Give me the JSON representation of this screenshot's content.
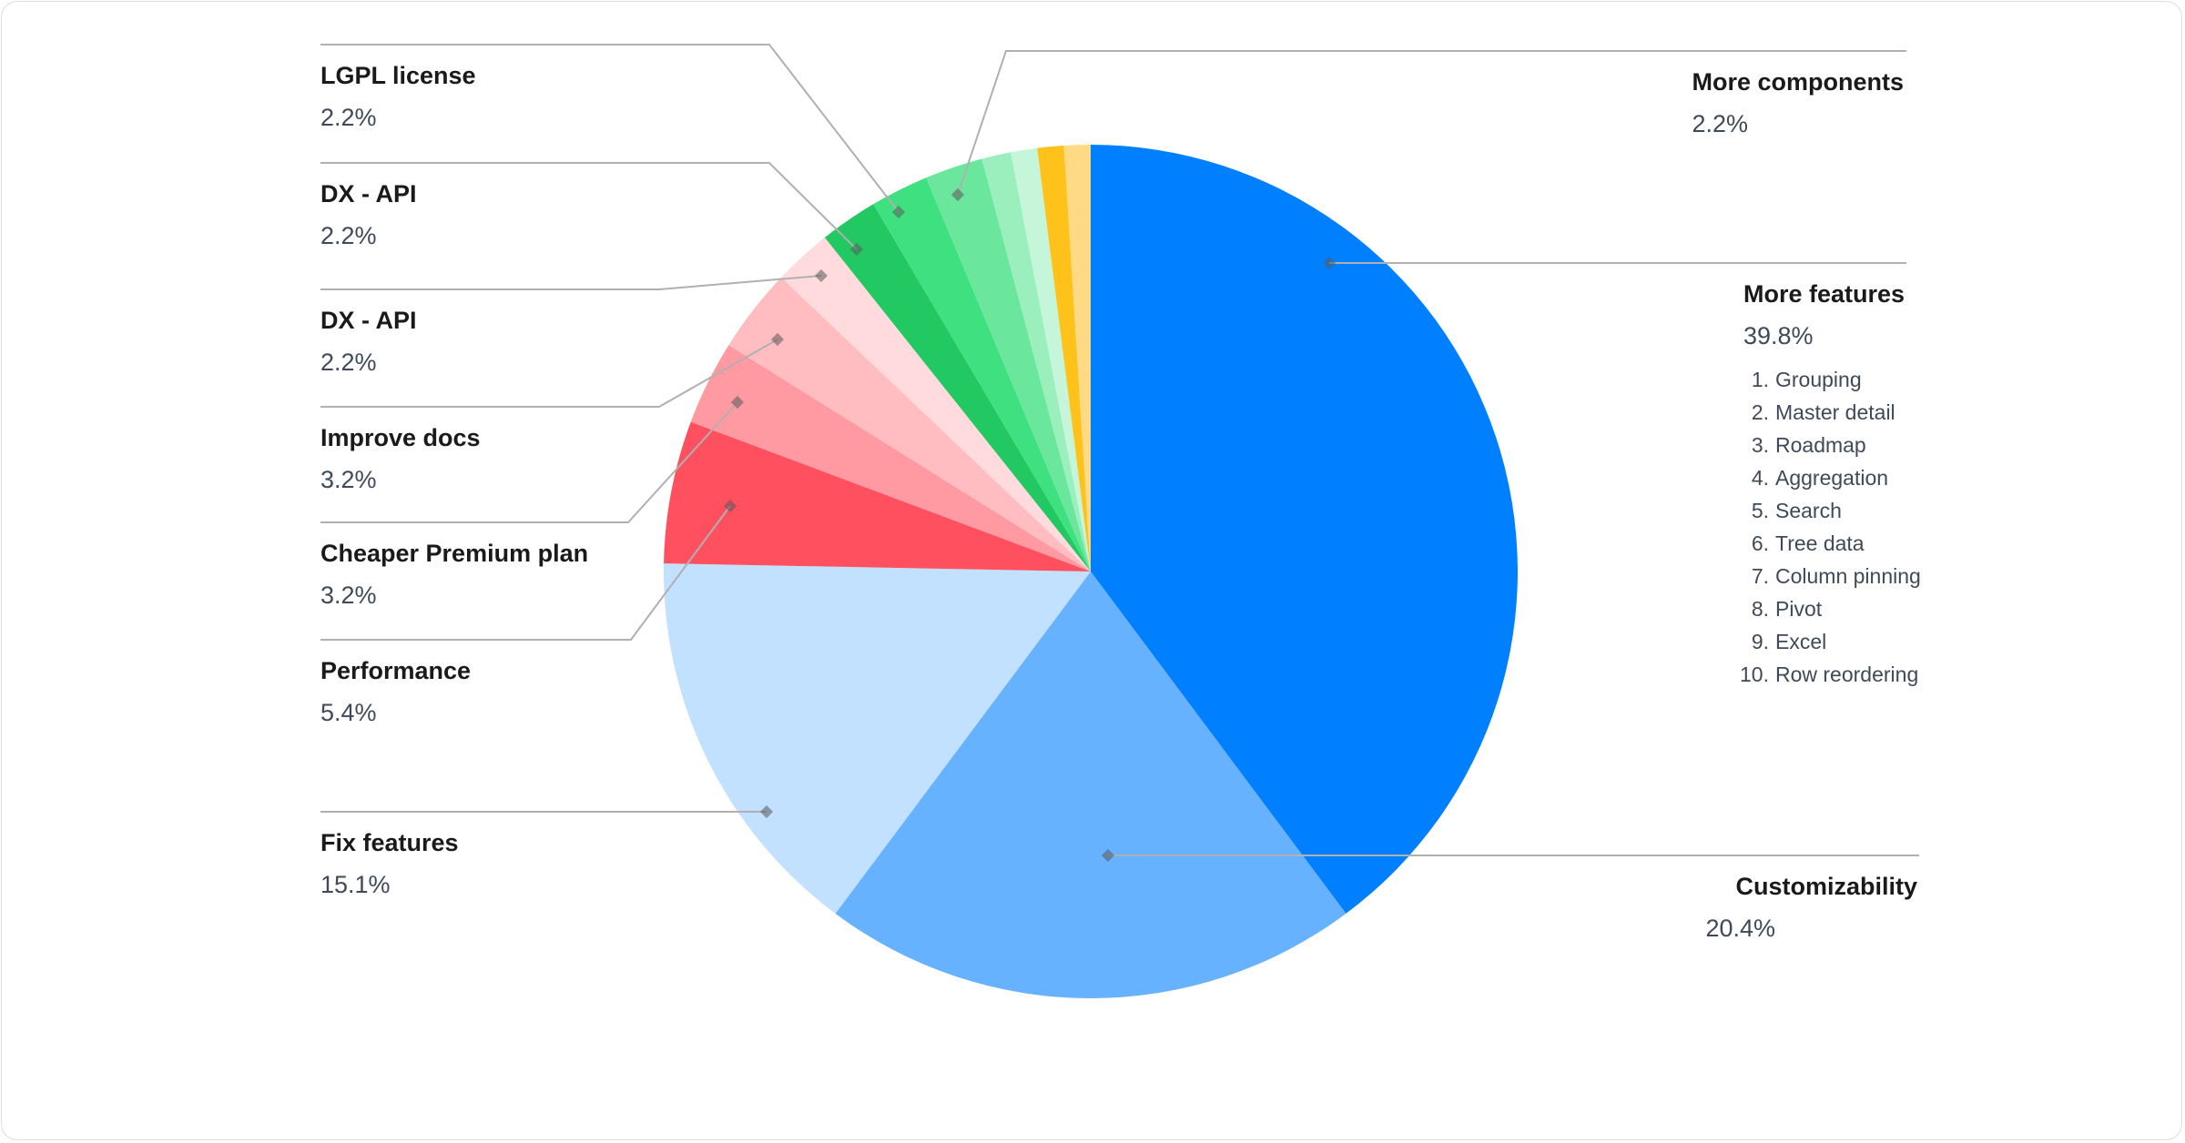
{
  "chart_data": {
    "type": "pie",
    "start": "top",
    "direction": "clockwise",
    "slices": [
      {
        "label": "More features",
        "value": 39.8,
        "display": "39.8%",
        "color": "#007FFF",
        "sub_items": [
          "Grouping",
          "Master detail",
          "Roadmap",
          "Aggregation",
          "Search",
          "Tree data",
          "Column pinning",
          "Pivot",
          "Excel",
          "Row reordering"
        ]
      },
      {
        "label": "Customizability",
        "value": 20.4,
        "display": "20.4%",
        "color": "#66B2FF"
      },
      {
        "label": "Fix features",
        "value": 15.1,
        "display": "15.1%",
        "color": "#C2E0FF"
      },
      {
        "label": "Performance",
        "value": 5.4,
        "display": "5.4%",
        "color": "#FF505F"
      },
      {
        "label": "Cheaper Premium plan",
        "value": 3.2,
        "display": "3.2%",
        "color": "#FF99A2"
      },
      {
        "label": "Improve docs",
        "value": 3.2,
        "display": "3.2%",
        "color": "#FFBDC2"
      },
      {
        "label": "DX - API",
        "value": 2.2,
        "display": "2.2%",
        "color": "#FFDBDE"
      },
      {
        "label": "DX - API",
        "value": 2.2,
        "display": "2.2%",
        "color": "#22C963"
      },
      {
        "label": "LGPL license",
        "value": 2.2,
        "display": "2.2%",
        "color": "#3EE07F"
      },
      {
        "label": "More components",
        "value": 2.2,
        "display": "2.2%",
        "color": "#6AE79C"
      },
      {
        "label": "",
        "value": 1.1,
        "color": "#9AEFBC"
      },
      {
        "label": "",
        "value": 1.0,
        "color": "#C6F6D9"
      },
      {
        "label": "",
        "value": 1.0,
        "color": "#FFC21A"
      },
      {
        "label": "",
        "value": 1.0,
        "color": "#FFDA85"
      }
    ],
    "leader_line_color": "#b0b0b0"
  }
}
